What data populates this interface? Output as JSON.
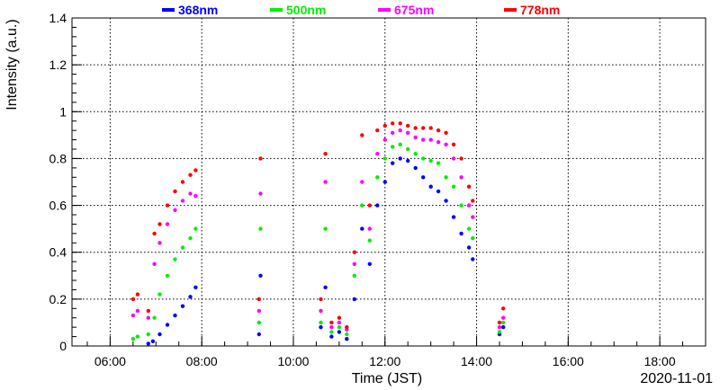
{
  "chart_data": {
    "type": "scatter",
    "title": "",
    "xlabel": "Time (JST)",
    "ylabel": "Intensity (a.u.)",
    "date_label": "2020-11-01",
    "xlim": [
      "05:10",
      "19:00"
    ],
    "ylim": [
      0,
      1.4
    ],
    "grid": true,
    "legend_position": "top",
    "x_ticks": [
      "06:00",
      "08:00",
      "10:00",
      "12:00",
      "14:00",
      "16:00",
      "18:00"
    ],
    "y_ticks": [
      "0",
      "0.2",
      "0.4",
      "0.6",
      "0.8",
      "1",
      "1.2",
      "1.4"
    ],
    "series": [
      {
        "name": "368nm",
        "color": "#0000ff",
        "points": [
          [
            "06:50",
            0.01
          ],
          [
            "06:56",
            0.02
          ],
          [
            "07:05",
            0.05
          ],
          [
            "07:15",
            0.09
          ],
          [
            "07:25",
            0.13
          ],
          [
            "07:35",
            0.17
          ],
          [
            "07:45",
            0.21
          ],
          [
            "07:52",
            0.25
          ],
          [
            "09:15",
            0.05
          ],
          [
            "09:17",
            0.3
          ],
          [
            "10:36",
            0.08
          ],
          [
            "10:42",
            0.25
          ],
          [
            "10:50",
            0.04
          ],
          [
            "11:00",
            0.06
          ],
          [
            "11:10",
            0.03
          ],
          [
            "11:20",
            0.2
          ],
          [
            "11:30",
            0.5
          ],
          [
            "11:40",
            0.35
          ],
          [
            "11:50",
            0.6
          ],
          [
            "12:00",
            0.7
          ],
          [
            "12:10",
            0.78
          ],
          [
            "12:20",
            0.8
          ],
          [
            "12:30",
            0.79
          ],
          [
            "12:40",
            0.76
          ],
          [
            "12:50",
            0.72
          ],
          [
            "13:00",
            0.68
          ],
          [
            "13:10",
            0.66
          ],
          [
            "13:20",
            0.62
          ],
          [
            "13:30",
            0.55
          ],
          [
            "13:40",
            0.48
          ],
          [
            "13:50",
            0.42
          ],
          [
            "13:55",
            0.37
          ],
          [
            "14:30",
            0.05
          ],
          [
            "14:35",
            0.08
          ]
        ]
      },
      {
        "name": "500nm",
        "color": "#00ee00",
        "points": [
          [
            "06:30",
            0.03
          ],
          [
            "06:36",
            0.04
          ],
          [
            "06:50",
            0.05
          ],
          [
            "06:58",
            0.12
          ],
          [
            "07:05",
            0.22
          ],
          [
            "07:15",
            0.3
          ],
          [
            "07:25",
            0.37
          ],
          [
            "07:35",
            0.42
          ],
          [
            "07:45",
            0.46
          ],
          [
            "07:52",
            0.5
          ],
          [
            "09:15",
            0.1
          ],
          [
            "09:17",
            0.5
          ],
          [
            "10:36",
            0.1
          ],
          [
            "10:42",
            0.5
          ],
          [
            "10:50",
            0.06
          ],
          [
            "11:00",
            0.08
          ],
          [
            "11:10",
            0.05
          ],
          [
            "11:20",
            0.3
          ],
          [
            "11:30",
            0.6
          ],
          [
            "11:40",
            0.45
          ],
          [
            "11:50",
            0.72
          ],
          [
            "12:00",
            0.8
          ],
          [
            "12:10",
            0.85
          ],
          [
            "12:20",
            0.86
          ],
          [
            "12:30",
            0.84
          ],
          [
            "12:40",
            0.82
          ],
          [
            "12:50",
            0.8
          ],
          [
            "13:00",
            0.79
          ],
          [
            "13:10",
            0.78
          ],
          [
            "13:20",
            0.72
          ],
          [
            "13:30",
            0.68
          ],
          [
            "13:40",
            0.6
          ],
          [
            "13:50",
            0.5
          ],
          [
            "13:55",
            0.46
          ],
          [
            "14:30",
            0.06
          ],
          [
            "14:35",
            0.1
          ]
        ]
      },
      {
        "name": "675nm",
        "color": "#ff00ff",
        "points": [
          [
            "06:30",
            0.13
          ],
          [
            "06:36",
            0.15
          ],
          [
            "06:50",
            0.12
          ],
          [
            "06:58",
            0.35
          ],
          [
            "07:05",
            0.44
          ],
          [
            "07:15",
            0.52
          ],
          [
            "07:25",
            0.58
          ],
          [
            "07:35",
            0.62
          ],
          [
            "07:45",
            0.65
          ],
          [
            "07:52",
            0.64
          ],
          [
            "09:15",
            0.15
          ],
          [
            "09:17",
            0.65
          ],
          [
            "10:36",
            0.15
          ],
          [
            "10:42",
            0.7
          ],
          [
            "10:50",
            0.08
          ],
          [
            "11:00",
            0.1
          ],
          [
            "11:10",
            0.07
          ],
          [
            "11:20",
            0.35
          ],
          [
            "11:30",
            0.7
          ],
          [
            "11:40",
            0.5
          ],
          [
            "11:50",
            0.82
          ],
          [
            "12:00",
            0.88
          ],
          [
            "12:10",
            0.91
          ],
          [
            "12:20",
            0.92
          ],
          [
            "12:30",
            0.91
          ],
          [
            "12:40",
            0.89
          ],
          [
            "12:50",
            0.88
          ],
          [
            "13:00",
            0.88
          ],
          [
            "13:10",
            0.87
          ],
          [
            "13:20",
            0.86
          ],
          [
            "13:30",
            0.8
          ],
          [
            "13:40",
            0.72
          ],
          [
            "13:50",
            0.6
          ],
          [
            "13:55",
            0.55
          ],
          [
            "14:30",
            0.08
          ],
          [
            "14:35",
            0.12
          ]
        ]
      },
      {
        "name": "778nm",
        "color": "#ff0000",
        "points": [
          [
            "06:30",
            0.2
          ],
          [
            "06:36",
            0.22
          ],
          [
            "06:50",
            0.15
          ],
          [
            "06:58",
            0.48
          ],
          [
            "07:05",
            0.52
          ],
          [
            "07:15",
            0.6
          ],
          [
            "07:25",
            0.66
          ],
          [
            "07:35",
            0.7
          ],
          [
            "07:45",
            0.73
          ],
          [
            "07:52",
            0.75
          ],
          [
            "09:15",
            0.2
          ],
          [
            "09:17",
            0.8
          ],
          [
            "10:36",
            0.2
          ],
          [
            "10:42",
            0.82
          ],
          [
            "10:50",
            0.1
          ],
          [
            "11:00",
            0.12
          ],
          [
            "11:10",
            0.08
          ],
          [
            "11:20",
            0.4
          ],
          [
            "11:30",
            0.9
          ],
          [
            "11:40",
            0.6
          ],
          [
            "11:50",
            0.92
          ],
          [
            "12:00",
            0.94
          ],
          [
            "12:10",
            0.95
          ],
          [
            "12:20",
            0.95
          ],
          [
            "12:30",
            0.94
          ],
          [
            "12:40",
            0.93
          ],
          [
            "12:50",
            0.93
          ],
          [
            "13:00",
            0.93
          ],
          [
            "13:10",
            0.92
          ],
          [
            "13:20",
            0.91
          ],
          [
            "13:30",
            0.86
          ],
          [
            "13:40",
            0.8
          ],
          [
            "13:50",
            0.68
          ],
          [
            "13:55",
            0.62
          ],
          [
            "14:30",
            0.1
          ],
          [
            "14:35",
            0.16
          ]
        ]
      }
    ]
  }
}
